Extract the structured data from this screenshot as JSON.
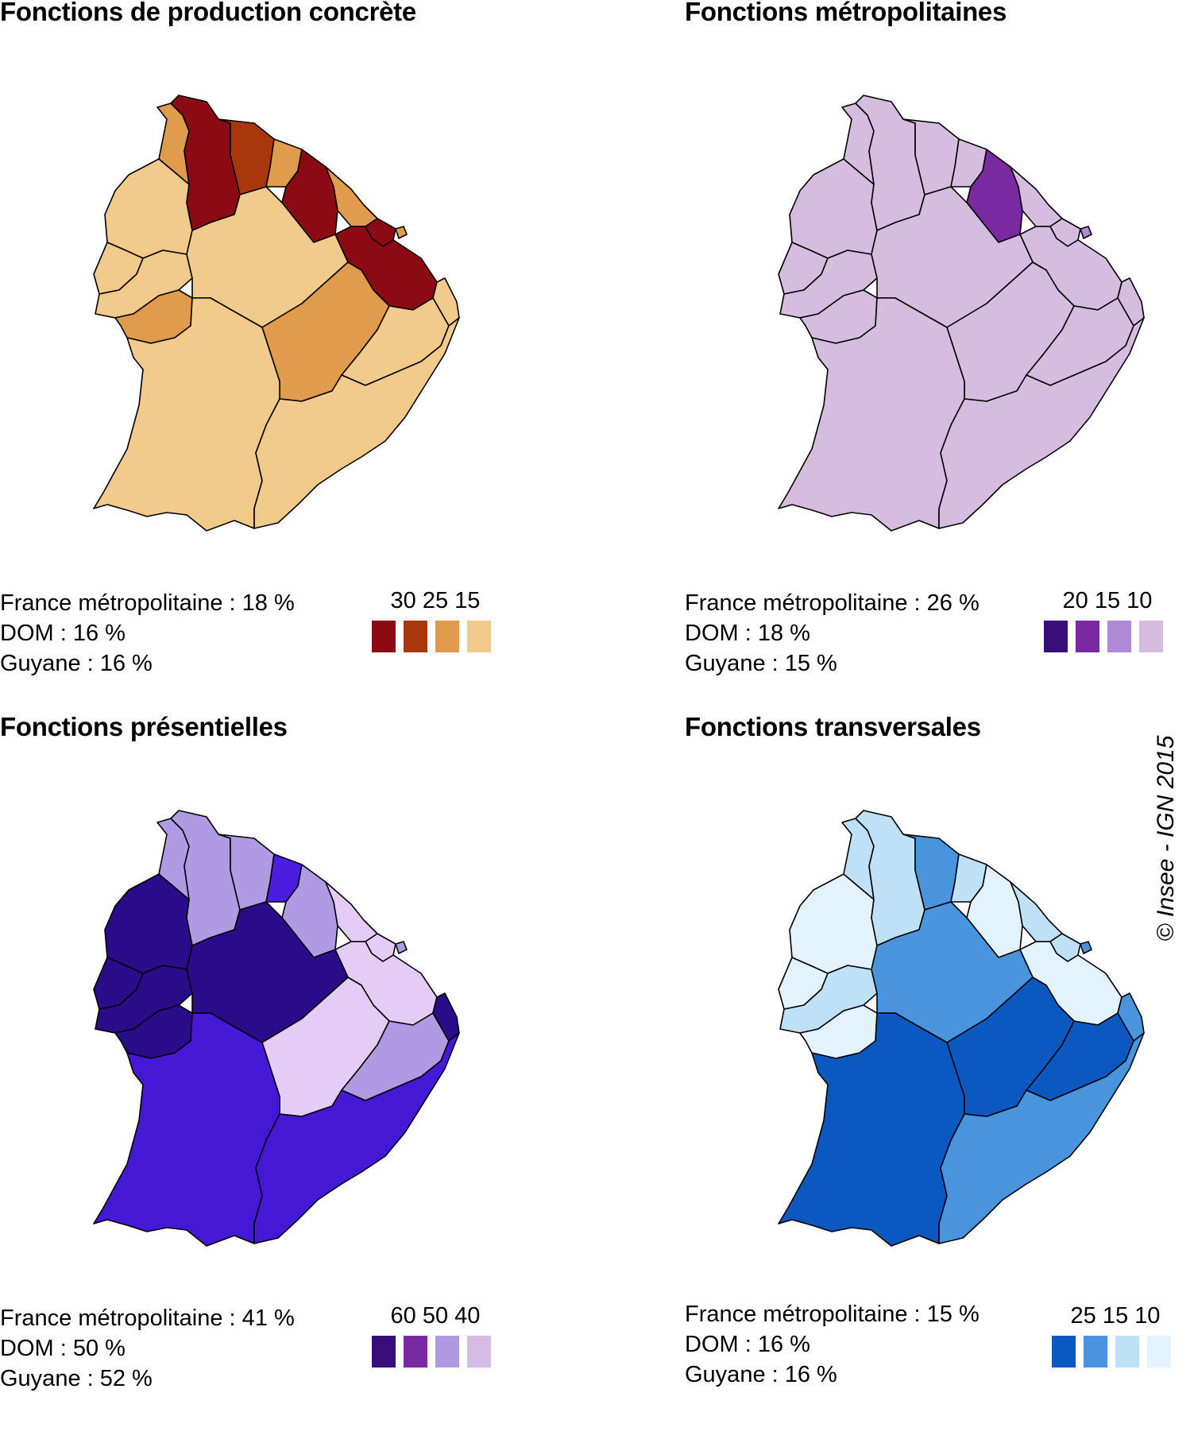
{
  "panels": [
    {
      "title": "Fonctions de production concrète",
      "stats": [
        "France métropolitaine : 18 %",
        "DOM : 16 %",
        "Guyane : 16 %"
      ],
      "legend_labels": "30 25 15",
      "legend_colors": [
        "#8b0a14",
        "#a8380c",
        "#e19b4c",
        "#f1ca8c"
      ],
      "region_colors": {
        "n1": "#f1ca8c",
        "n2": "#e19b4c",
        "n3": "#8b0a14",
        "n4": "#a8380c",
        "n5": "#e19b4c",
        "n6": "#8b0a14",
        "n7": "#e19b4c",
        "n8": "#8b0a14",
        "n9": "#8b0a14",
        "n10": "#e19b4c",
        "w1": "#f1ca8c",
        "w2": "#f1ca8c",
        "w3": "#e19b4c",
        "c1": "#f1ca8c",
        "c2": "#e19b4c",
        "e1": "#f1ca8c",
        "e2": "#f1ca8c",
        "s1": "#f1ca8c",
        "s2": "#f1ca8c"
      }
    },
    {
      "title": "Fonctions métropolitaines",
      "stats": [
        "France métropolitaine : 26 %",
        "DOM : 18 %",
        "Guyane : 15 %"
      ],
      "legend_labels": "20 15 10",
      "legend_colors": [
        "#3a0e7a",
        "#7a2aa0",
        "#b08ad6",
        "#d6bde0"
      ],
      "region_colors": {
        "n1": "#d6bde0",
        "n2": "#d6bde0",
        "n3": "#d6bde0",
        "n4": "#d6bde0",
        "n5": "#d6bde0",
        "n6": "#7a2aa0",
        "n7": "#d6bde0",
        "n8": "#d6bde0",
        "n9": "#d6bde0",
        "n10": "#b08ad6",
        "w1": "#d6bde0",
        "w2": "#d6bde0",
        "w3": "#d6bde0",
        "c1": "#d6bde0",
        "c2": "#d6bde0",
        "e1": "#d6bde0",
        "e2": "#d6bde0",
        "s1": "#d6bde0",
        "s2": "#d6bde0"
      }
    },
    {
      "title": "Fonctions présentielles",
      "stats": [
        "France métropolitaine : 41 %",
        "DOM : 50 %",
        "Guyane : 52 %"
      ],
      "legend_labels": "60 50 40",
      "legend_colors": [
        "#3a0e7a",
        "#7a2aa0",
        "#b09ae4",
        "#d6bde6"
      ],
      "region_colors": {
        "n1": "#2a0c8a",
        "n2": "#b09ae4",
        "n3": "#b09ae4",
        "n4": "#b09ae4",
        "n5": "#4a1de0",
        "n6": "#b09ae4",
        "n7": "#e5ccf6",
        "n8": "#e5ccf6",
        "n9": "#e5ccf6",
        "n10": "#b09ae4",
        "w1": "#2a0c8a",
        "w2": "#2a0c8a",
        "w3": "#2a0c8a",
        "c1": "#2a0c8a",
        "c2": "#e5ccf6",
        "e1": "#b09ae4",
        "e2": "#2a0c8a",
        "s1": "#4518d6",
        "s2": "#4518d6"
      }
    },
    {
      "title": "Fonctions transversales",
      "stats": [
        "France métropolitaine : 15 %",
        "DOM : 16 %",
        "Guyane : 16 %"
      ],
      "legend_labels": "25 15 10",
      "legend_colors": [
        "#0a58c0",
        "#4a94de",
        "#bfe1f8",
        "#e3f3fd"
      ],
      "region_colors": {
        "n1": "#e3f3fd",
        "n2": "#bfe1f8",
        "n3": "#bfe1f8",
        "n4": "#4a94de",
        "n5": "#bfe1f8",
        "n6": "#e3f3fd",
        "n7": "#bfe1f8",
        "n8": "#bfe1f8",
        "n9": "#e3f3fd",
        "n10": "#4a94de",
        "w1": "#e3f3fd",
        "w2": "#bfe1f8",
        "w3": "#e3f3fd",
        "c1": "#4a94de",
        "c2": "#0a58c0",
        "e1": "#0a58c0",
        "e2": "#4a94de",
        "s1": "#0a58c0",
        "s2": "#4a94de"
      }
    }
  ],
  "copyright": "© Insee - IGN 2015"
}
